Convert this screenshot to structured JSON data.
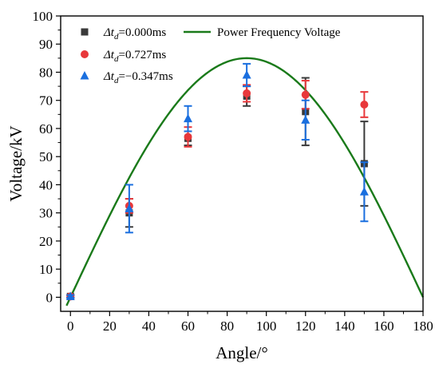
{
  "chart_data": {
    "type": "scatter",
    "xlabel": "Angle/°",
    "ylabel": "Voltage/kV",
    "xlim": [
      -5,
      180
    ],
    "ylim": [
      -5,
      100
    ],
    "xticks": [
      0,
      20,
      40,
      60,
      80,
      100,
      120,
      140,
      160,
      180
    ],
    "yticks": [
      0,
      10,
      20,
      30,
      40,
      50,
      60,
      70,
      80,
      90,
      100
    ],
    "grid": false,
    "legend_position": "top-left",
    "series": [
      {
        "name_prefix": "Δt",
        "name_sub": "d",
        "name_suffix": "=0.000ms",
        "marker": "square",
        "color": "#3a3a3a",
        "points": [
          {
            "x": 0,
            "y": 0.3,
            "err": 0.5
          },
          {
            "x": 30,
            "y": 30,
            "err": 5
          },
          {
            "x": 60,
            "y": 56.5,
            "err": 2.5
          },
          {
            "x": 90,
            "y": 71.5,
            "err": 3.5
          },
          {
            "x": 120,
            "y": 66,
            "err": 12
          },
          {
            "x": 150,
            "y": 47.5,
            "err": 15
          }
        ]
      },
      {
        "name_prefix": "Δt",
        "name_sub": "d",
        "name_suffix": "=0.727ms",
        "marker": "circle",
        "color": "#e8383b",
        "points": [
          {
            "x": 0,
            "y": 0.3,
            "err": 0.5
          },
          {
            "x": 30,
            "y": 32.5,
            "err": 2.5
          },
          {
            "x": 60,
            "y": 57,
            "err": 3.5
          },
          {
            "x": 90,
            "y": 72.5,
            "err": 3
          },
          {
            "x": 120,
            "y": 72,
            "err": 5
          },
          {
            "x": 150,
            "y": 68.5,
            "err": 4.5
          }
        ]
      },
      {
        "name_prefix": "Δt",
        "name_sub": "d",
        "name_suffix": "=−0.347ms",
        "marker": "triangle",
        "color": "#1a6fdf",
        "points": [
          {
            "x": 0,
            "y": 0.3,
            "err": 0.5
          },
          {
            "x": 30,
            "y": 31.5,
            "err": 8.5
          },
          {
            "x": 60,
            "y": 63.5,
            "err": 4.5
          },
          {
            "x": 90,
            "y": 79,
            "err": 4
          },
          {
            "x": 120,
            "y": 63,
            "err": 7
          },
          {
            "x": 150,
            "y": 37.5,
            "err": 10.5
          }
        ]
      }
    ],
    "curve": {
      "name": "Power Frequency Voltage",
      "type": "line",
      "color": "#1a7a1a",
      "function": "85*sin(x)",
      "amplitude": 85,
      "x_start": -2,
      "x_end": 180
    }
  }
}
